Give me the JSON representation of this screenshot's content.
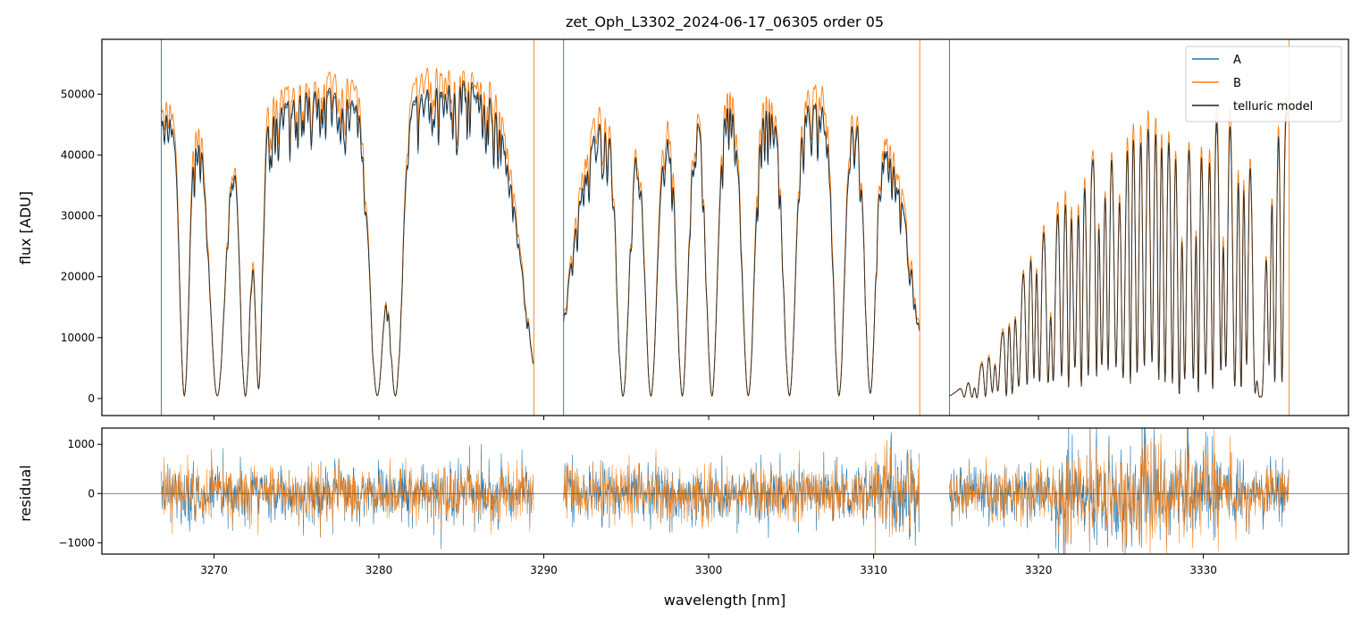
{
  "chart_data": [
    {
      "type": "line",
      "panel": "spectrum",
      "title": "zet_Oph_L3302_2024-06-17_06305  order 05",
      "xlabel": "",
      "ylabel": "flux [ADU]",
      "xlim": [
        3263.2,
        3338.8
      ],
      "ylim": [
        -2800,
        59000
      ],
      "xticks": [
        3270,
        3280,
        3290,
        3300,
        3310,
        3320,
        3330
      ],
      "yticks": [
        0,
        10000,
        20000,
        30000,
        40000,
        50000
      ],
      "grid": false,
      "legend": "top-right",
      "segments": [
        [
          3266.8,
          3289.4
        ],
        [
          3291.2,
          3312.8
        ],
        [
          3314.6,
          3335.2
        ]
      ],
      "series": [
        {
          "name": "A",
          "color": "#1f77b4"
        },
        {
          "name": "B",
          "color": "#ff7f0e"
        },
        {
          "name": "telluric model",
          "color": "#222222"
        }
      ],
      "continuum_points": [
        [
          3266.8,
          48000
        ],
        [
          3268.5,
          47000
        ],
        [
          3270.0,
          45000
        ],
        [
          3272.0,
          44000
        ],
        [
          3273.5,
          47000
        ],
        [
          3275.0,
          50000
        ],
        [
          3277.0,
          51000
        ],
        [
          3279.0,
          49000
        ],
        [
          3280.5,
          48000
        ],
        [
          3282.0,
          50000
        ],
        [
          3284.0,
          52000
        ],
        [
          3286.0,
          52500
        ],
        [
          3289.4,
          52500
        ],
        [
          3291.2,
          49000
        ],
        [
          3293.0,
          49000
        ],
        [
          3295.0,
          46000
        ],
        [
          3297.0,
          45000
        ],
        [
          3299.0,
          47000
        ],
        [
          3301.0,
          49000
        ],
        [
          3303.0,
          48000
        ],
        [
          3305.0,
          48000
        ],
        [
          3307.0,
          49000
        ],
        [
          3309.0,
          47000
        ],
        [
          3311.0,
          42000
        ],
        [
          3312.8,
          38000
        ],
        [
          3314.6,
          1500
        ],
        [
          3316.0,
          4000
        ],
        [
          3318.0,
          12000
        ],
        [
          3319.0,
          22000
        ],
        [
          3321.0,
          33000
        ],
        [
          3323.0,
          39000
        ],
        [
          3325.0,
          44000
        ],
        [
          3326.5,
          49000
        ],
        [
          3328.0,
          45000
        ],
        [
          3330.0,
          44000
        ],
        [
          3332.0,
          51000
        ],
        [
          3333.5,
          49000
        ],
        [
          3335.2,
          47000
        ]
      ],
      "absorption_bands": [
        {
          "center": 3268.2,
          "depth": 0.99,
          "width": 0.28
        },
        {
          "center": 3270.2,
          "depth": 0.99,
          "width": 0.45
        },
        {
          "center": 3271.9,
          "depth": 0.99,
          "width": 0.3
        },
        {
          "center": 3272.7,
          "depth": 0.96,
          "width": 0.22
        },
        {
          "center": 3279.9,
          "depth": 0.99,
          "width": 0.45
        },
        {
          "center": 3281.0,
          "depth": 0.99,
          "width": 0.4
        },
        {
          "center": 3290.1,
          "depth": 1.0,
          "width": 1.4
        },
        {
          "center": 3294.8,
          "depth": 0.99,
          "width": 0.35
        },
        {
          "center": 3296.5,
          "depth": 0.99,
          "width": 0.35
        },
        {
          "center": 3298.4,
          "depth": 0.99,
          "width": 0.32
        },
        {
          "center": 3300.2,
          "depth": 0.99,
          "width": 0.32
        },
        {
          "center": 3302.4,
          "depth": 0.99,
          "width": 0.35
        },
        {
          "center": 3304.9,
          "depth": 0.99,
          "width": 0.35
        },
        {
          "center": 3307.9,
          "depth": 0.99,
          "width": 0.32
        },
        {
          "center": 3309.8,
          "depth": 0.98,
          "width": 0.3
        },
        {
          "center": 3313.7,
          "depth": 1.0,
          "width": 1.1
        },
        {
          "center": 3333.4,
          "depth": 0.99,
          "width": 0.3
        }
      ]
    },
    {
      "type": "line",
      "panel": "residual",
      "title": "",
      "xlabel": "wavelength [nm]",
      "ylabel": "residual",
      "xlim": [
        3263.2,
        3338.8
      ],
      "ylim": [
        -1230,
        1330
      ],
      "yticks": [
        -1000,
        0,
        1000
      ],
      "zero_line": 0,
      "grid": false,
      "series": [
        {
          "name": "A",
          "color": "#1f77b4"
        },
        {
          "name": "B",
          "color": "#ff7f0e"
        }
      ]
    }
  ]
}
